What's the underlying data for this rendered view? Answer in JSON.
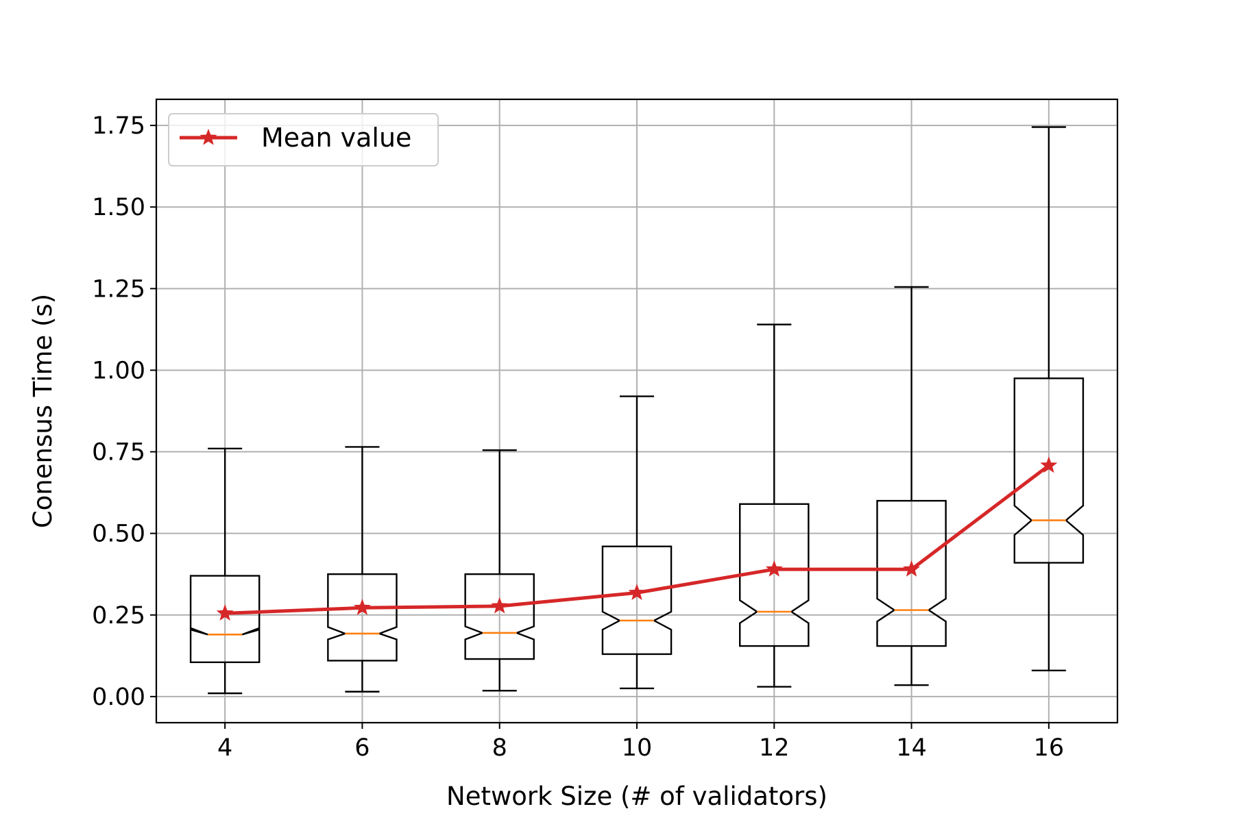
{
  "chart_data": {
    "type": "box",
    "xlabel": "Network Size (# of validators)",
    "ylabel": "Conensus Time (s)",
    "ylim": [
      -0.08,
      1.83
    ],
    "xlim": [
      3,
      17
    ],
    "y_ticks": [
      "0.00",
      "0.25",
      "0.50",
      "0.75",
      "1.00",
      "1.25",
      "1.50",
      "1.75"
    ],
    "x_ticks": [
      "4",
      "6",
      "8",
      "10",
      "12",
      "14",
      "16"
    ],
    "grid": true,
    "legend": {
      "placement": "upper-left",
      "entries": [
        "Mean value"
      ]
    },
    "colors": {
      "box": "#000000",
      "median": "#ff7f0e",
      "mean": "#d62728",
      "grid": "#b0b0b0"
    },
    "boxes": [
      {
        "x": 4,
        "whislo": 0.01,
        "q1": 0.105,
        "notchlo": 0.21,
        "med": 0.19,
        "notchhi": 0.205,
        "q3": 0.37,
        "whishi": 0.76
      },
      {
        "x": 6,
        "whislo": 0.015,
        "q1": 0.11,
        "notchlo": 0.175,
        "med": 0.193,
        "notchhi": 0.213,
        "q3": 0.375,
        "whishi": 0.765
      },
      {
        "x": 8,
        "whislo": 0.018,
        "q1": 0.115,
        "notchlo": 0.175,
        "med": 0.195,
        "notchhi": 0.215,
        "q3": 0.375,
        "whishi": 0.755
      },
      {
        "x": 10,
        "whislo": 0.025,
        "q1": 0.13,
        "notchlo": 0.205,
        "med": 0.233,
        "notchhi": 0.26,
        "q3": 0.46,
        "whishi": 0.92
      },
      {
        "x": 12,
        "whislo": 0.03,
        "q1": 0.155,
        "notchlo": 0.225,
        "med": 0.26,
        "notchhi": 0.295,
        "q3": 0.59,
        "whishi": 1.14
      },
      {
        "x": 14,
        "whislo": 0.035,
        "q1": 0.155,
        "notchlo": 0.23,
        "med": 0.265,
        "notchhi": 0.3,
        "q3": 0.6,
        "whishi": 1.255
      },
      {
        "x": 16,
        "whislo": 0.08,
        "q1": 0.41,
        "notchlo": 0.495,
        "med": 0.54,
        "notchhi": 0.585,
        "q3": 0.975,
        "whishi": 1.745
      }
    ],
    "series": [
      {
        "name": "Mean value",
        "x": [
          4,
          6,
          8,
          10,
          12,
          14,
          16
        ],
        "values": [
          0.255,
          0.272,
          0.277,
          0.318,
          0.39,
          0.39,
          0.708
        ]
      }
    ]
  }
}
